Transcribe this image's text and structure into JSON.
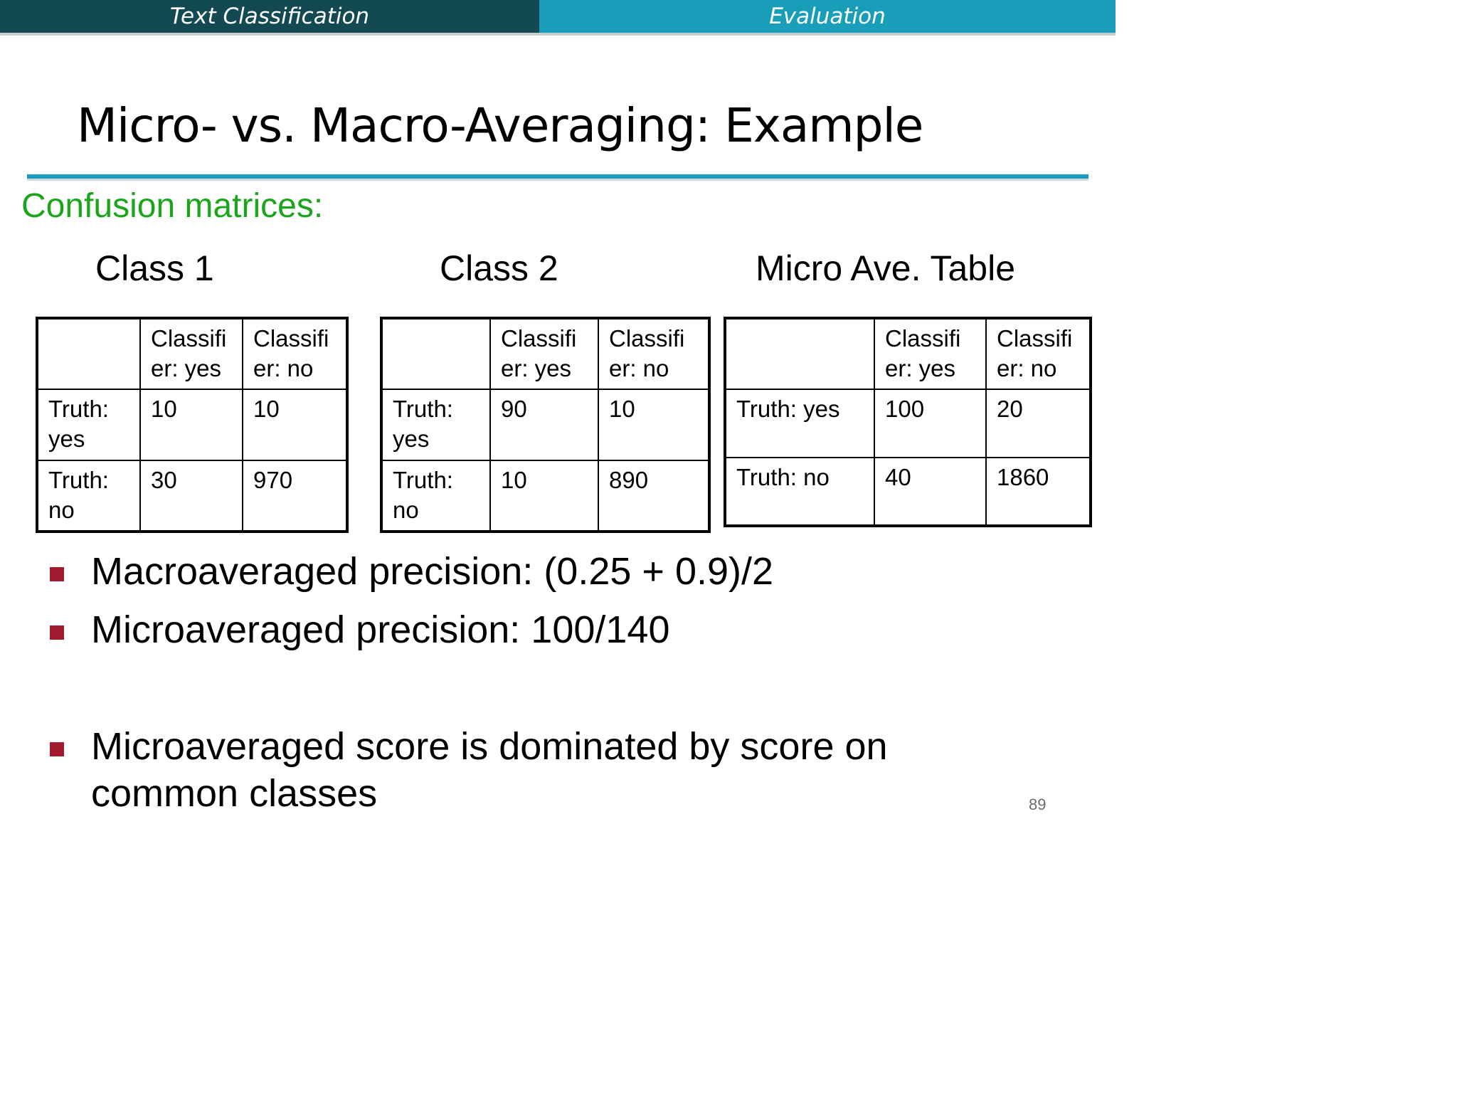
{
  "header": {
    "sections": [
      "Text Classification",
      "Evaluation"
    ]
  },
  "slide": {
    "title": "Micro- vs. Macro-Averaging: Example",
    "subtitle": "Confusion matrices:",
    "page_number": "89"
  },
  "tables": [
    {
      "heading": "Class 1",
      "col_headers": [
        [
          "Classifi",
          "er: yes"
        ],
        [
          "Classifi",
          "er: no"
        ]
      ],
      "rows": [
        {
          "label": [
            "Truth:",
            "yes"
          ],
          "values": [
            "10",
            "10"
          ]
        },
        {
          "label": [
            "Truth:",
            "no"
          ],
          "values": [
            "30",
            "970"
          ]
        }
      ]
    },
    {
      "heading": "Class 2",
      "col_headers": [
        [
          "Classifi",
          "er: yes"
        ],
        [
          "Classifi",
          "er: no"
        ]
      ],
      "rows": [
        {
          "label": [
            "Truth:",
            "yes"
          ],
          "values": [
            "90",
            "10"
          ]
        },
        {
          "label": [
            "Truth:",
            "no"
          ],
          "values": [
            "10",
            "890"
          ]
        }
      ]
    },
    {
      "heading": "Micro Ave. Table",
      "col_headers": [
        [
          "Classifi",
          "er: yes"
        ],
        [
          "Classifi",
          "er: no"
        ]
      ],
      "rows": [
        {
          "label": [
            "Truth: yes"
          ],
          "values": [
            "100",
            "20"
          ]
        },
        {
          "label": [
            "Truth: no"
          ],
          "values": [
            "40",
            "1860"
          ]
        }
      ]
    }
  ],
  "bullets": [
    "Macroaveraged precision: (0.25 + 0.9)/2",
    "Microaveraged precision: 100/140",
    [
      "Microaveraged score is dominated by score on",
      "common classes"
    ]
  ],
  "colors": {
    "section_active": "#134953",
    "section_inactive": "#189eb9",
    "title_rule": "#1a9dbf",
    "subtitle": "#1aa51a",
    "bullet_marker": "#a01b2f"
  }
}
